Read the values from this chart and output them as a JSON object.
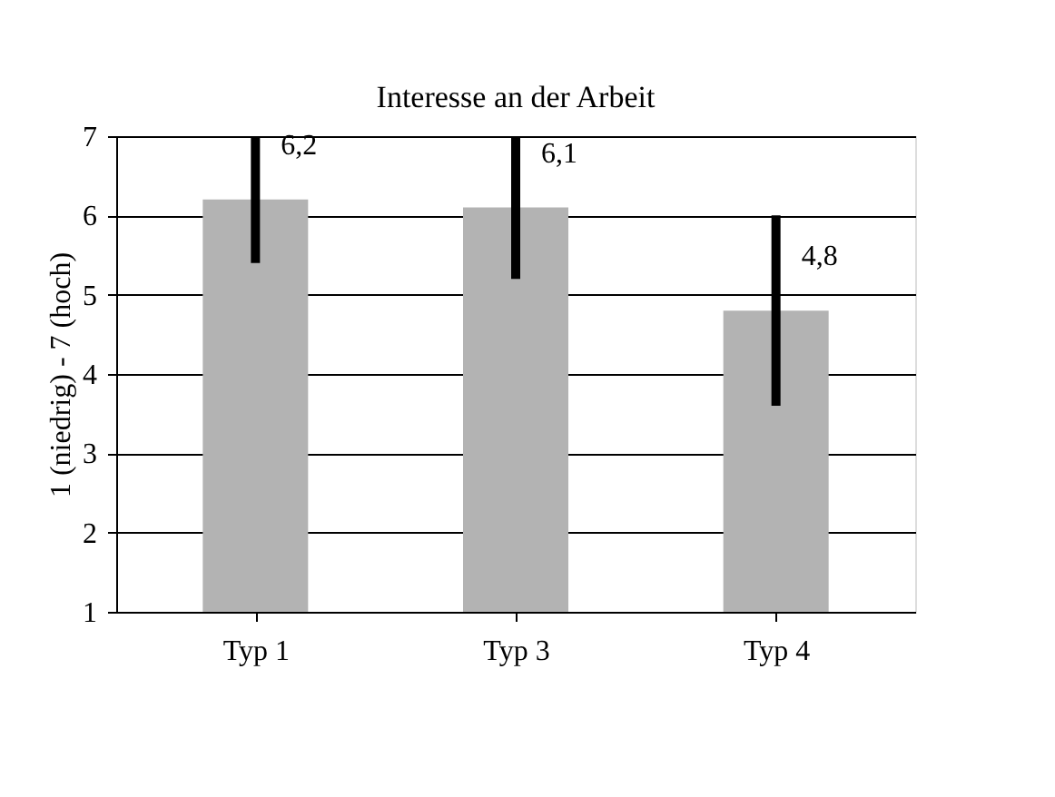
{
  "chart_data": {
    "type": "bar",
    "title": "Interesse an der Arbeit",
    "ylabel": "1 (niedrig) - 7 (hoch)",
    "categories": [
      "Typ 1",
      "Typ 3",
      "Typ 4"
    ],
    "values": [
      6.2,
      6.1,
      4.8
    ],
    "value_labels": [
      "6,2",
      "6,1",
      "4,8"
    ],
    "errors": [
      0.8,
      0.9,
      1.2
    ],
    "color": "#b3b3b3",
    "ylim": [
      1,
      7
    ],
    "yticks": [
      1,
      2,
      3,
      4,
      5,
      6,
      7
    ],
    "grid": "y"
  }
}
